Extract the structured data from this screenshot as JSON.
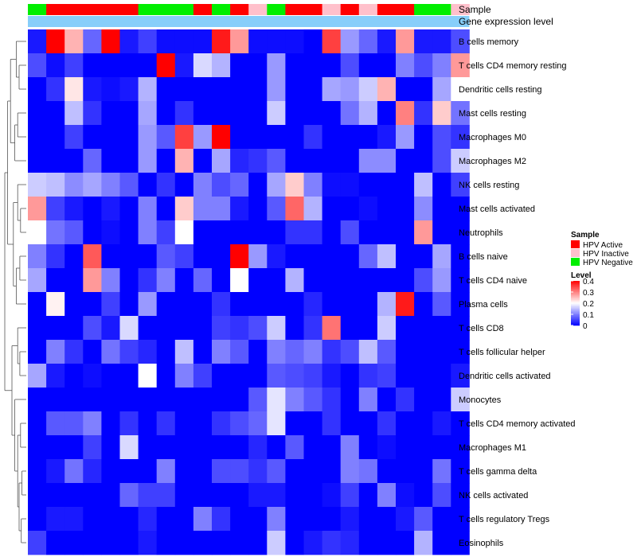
{
  "chart_data": {
    "type": "heatmap",
    "annotation_tracks": [
      "Sample",
      "Gene expression level"
    ],
    "sample_annotation": [
      "HPV Negative",
      "HPV Active",
      "HPV Active",
      "HPV Active",
      "HPV Active",
      "HPV Active",
      "HPV Negative",
      "HPV Negative",
      "HPV Negative",
      "HPV Active",
      "HPV Negative",
      "HPV Active",
      "HPV Inactive",
      "HPV Negative",
      "HPV Active",
      "HPV Active",
      "HPV Inactive",
      "HPV Active",
      "HPV Inactive",
      "HPV Active",
      "HPV Active",
      "HPV Negative",
      "HPV Negative",
      "HPV Inactive"
    ],
    "rows": [
      "B cells memory",
      "T cells CD4 memory resting",
      "Dendritic cells resting",
      "Mast cells resting",
      "Macrophages M0",
      "Macrophages M2",
      "NK cells resting",
      "Mast cells activated",
      "Neutrophils",
      "B cells naive",
      "T cells CD4 naive",
      "Plasma cells",
      "T cells CD8",
      "T cells follicular helper",
      "Dendritic cells activated",
      "Monocytes",
      "T cells CD4 memory activated",
      "Macrophages M1",
      "T cells gamma delta",
      "NK cells activated",
      "T cells regulatory  Tregs",
      "Eosinophils"
    ],
    "values": [
      [
        0.02,
        0.4,
        0.26,
        0.08,
        0.4,
        0.02,
        0.05,
        0.01,
        0.01,
        0.01,
        0.38,
        0.28,
        0.01,
        0.01,
        0.01,
        0.0,
        0.35,
        0.12,
        0.08,
        0.02,
        0.28,
        0.02,
        0.02,
        0.06
      ],
      [
        0.06,
        0.01,
        0.05,
        0.0,
        0.0,
        0.0,
        0.0,
        0.4,
        0.02,
        0.17,
        0.14,
        0.0,
        0.0,
        0.12,
        0.0,
        0.0,
        0.0,
        0.06,
        0.0,
        0.0,
        0.1,
        0.06,
        0.1,
        0.28
      ],
      [
        0.0,
        0.04,
        0.22,
        0.02,
        0.01,
        0.02,
        0.14,
        0.0,
        0.0,
        0.0,
        0.0,
        0.0,
        0.0,
        0.12,
        0.0,
        0.0,
        0.13,
        0.12,
        0.16,
        0.26,
        0.0,
        0.0,
        0.13,
        0.2
      ],
      [
        0.0,
        0.0,
        0.15,
        0.04,
        0.0,
        0.0,
        0.13,
        0.0,
        0.04,
        0.0,
        0.0,
        0.0,
        0.0,
        0.16,
        0.0,
        0.0,
        0.0,
        0.09,
        0.14,
        0.0,
        0.3,
        0.04,
        0.24,
        0.09
      ],
      [
        0.0,
        0.0,
        0.05,
        0.0,
        0.0,
        0.0,
        0.12,
        0.07,
        0.35,
        0.12,
        0.4,
        0.0,
        0.0,
        0.0,
        0.0,
        0.04,
        0.0,
        0.0,
        0.0,
        0.02,
        0.12,
        0.0,
        0.06,
        0.04
      ],
      [
        0.0,
        0.0,
        0.0,
        0.08,
        0.0,
        0.0,
        0.12,
        0.0,
        0.26,
        0.0,
        0.13,
        0.03,
        0.04,
        0.07,
        0.0,
        0.0,
        0.0,
        0.0,
        0.11,
        0.11,
        0.0,
        0.0,
        0.06,
        0.16
      ],
      [
        0.16,
        0.15,
        0.11,
        0.13,
        0.1,
        0.07,
        0.0,
        0.04,
        0.0,
        0.1,
        0.06,
        0.08,
        0.0,
        0.13,
        0.24,
        0.1,
        0.01,
        0.01,
        0.0,
        0.0,
        0.0,
        0.15,
        0.0,
        0.05
      ],
      [
        0.28,
        0.05,
        0.02,
        0.0,
        0.02,
        0.0,
        0.1,
        0.0,
        0.24,
        0.1,
        0.1,
        0.02,
        0.0,
        0.07,
        0.32,
        0.14,
        0.0,
        0.0,
        0.01,
        0.0,
        0.0,
        0.11,
        0.0,
        0.0
      ],
      [
        0.2,
        0.09,
        0.07,
        0.0,
        0.01,
        0.0,
        0.1,
        0.05,
        0.2,
        0.0,
        0.0,
        0.0,
        0.0,
        0.0,
        0.04,
        0.04,
        0.0,
        0.06,
        0.0,
        0.0,
        0.0,
        0.28,
        0.0,
        0.0
      ],
      [
        0.1,
        0.04,
        0.0,
        0.33,
        0.0,
        0.0,
        0.0,
        0.07,
        0.05,
        0.0,
        0.0,
        0.4,
        0.12,
        0.02,
        0.0,
        0.0,
        0.0,
        0.0,
        0.08,
        0.15,
        0.0,
        0.0,
        0.13,
        0.0
      ],
      [
        0.13,
        0.0,
        0.0,
        0.28,
        0.1,
        0.0,
        0.04,
        0.1,
        0.0,
        0.08,
        0.0,
        0.2,
        0.0,
        0.0,
        0.14,
        0.0,
        0.0,
        0.0,
        0.0,
        0.0,
        0.0,
        0.06,
        0.12,
        0.0
      ],
      [
        0.0,
        0.21,
        0.0,
        0.0,
        0.05,
        0.0,
        0.12,
        0.0,
        0.0,
        0.0,
        0.04,
        0.0,
        0.0,
        0.0,
        0.0,
        0.03,
        0.0,
        0.0,
        0.0,
        0.14,
        0.38,
        0.0,
        0.07,
        0.0
      ],
      [
        0.0,
        0.0,
        0.0,
        0.06,
        0.02,
        0.17,
        0.0,
        0.0,
        0.0,
        0.0,
        0.05,
        0.04,
        0.06,
        0.16,
        0.0,
        0.04,
        0.31,
        0.0,
        0.0,
        0.16,
        0.0,
        0.0,
        0.0,
        0.0
      ],
      [
        0.0,
        0.1,
        0.04,
        0.0,
        0.09,
        0.05,
        0.03,
        0.0,
        0.15,
        0.0,
        0.1,
        0.07,
        0.0,
        0.1,
        0.08,
        0.1,
        0.04,
        0.06,
        0.15,
        0.07,
        0.0,
        0.0,
        0.0,
        0.0
      ],
      [
        0.13,
        0.02,
        0.0,
        0.01,
        0.0,
        0.0,
        0.2,
        0.0,
        0.1,
        0.05,
        0.0,
        0.0,
        0.0,
        0.07,
        0.06,
        0.05,
        0.02,
        0.0,
        0.04,
        0.05,
        0.0,
        0.0,
        0.0,
        0.02
      ],
      [
        0.0,
        0.0,
        0.0,
        0.0,
        0.0,
        0.0,
        0.0,
        0.0,
        0.0,
        0.0,
        0.0,
        0.0,
        0.07,
        0.18,
        0.1,
        0.07,
        0.04,
        0.0,
        0.1,
        0.0,
        0.04,
        0.0,
        0.0,
        0.16
      ],
      [
        0.0,
        0.07,
        0.07,
        0.1,
        0.0,
        0.04,
        0.0,
        0.04,
        0.0,
        0.0,
        0.04,
        0.06,
        0.08,
        0.18,
        0.0,
        0.0,
        0.04,
        0.0,
        0.0,
        0.04,
        0.0,
        0.0,
        0.02,
        0.0
      ],
      [
        0.0,
        0.0,
        0.0,
        0.05,
        0.0,
        0.17,
        0.0,
        0.0,
        0.0,
        0.0,
        0.0,
        0.0,
        0.03,
        0.0,
        0.07,
        0.0,
        0.0,
        0.1,
        0.0,
        0.01,
        0.0,
        0.0,
        0.0,
        0.0
      ],
      [
        0.0,
        0.02,
        0.09,
        0.03,
        0.0,
        0.0,
        0.0,
        0.1,
        0.0,
        0.0,
        0.06,
        0.06,
        0.04,
        0.07,
        0.0,
        0.0,
        0.0,
        0.1,
        0.09,
        0.0,
        0.0,
        0.0,
        0.09,
        0.0
      ],
      [
        0.0,
        0.0,
        0.0,
        0.0,
        0.0,
        0.08,
        0.05,
        0.05,
        0.0,
        0.0,
        0.0,
        0.0,
        0.02,
        0.02,
        0.0,
        0.0,
        0.01,
        0.05,
        0.0,
        0.1,
        0.01,
        0.0,
        0.06,
        0.0
      ],
      [
        0.0,
        0.02,
        0.02,
        0.0,
        0.0,
        0.0,
        0.03,
        0.0,
        0.0,
        0.1,
        0.04,
        0.0,
        0.0,
        0.1,
        0.0,
        0.0,
        0.0,
        0.02,
        0.0,
        0.0,
        0.02,
        0.07,
        0.0,
        0.0
      ],
      [
        0.05,
        0.0,
        0.0,
        0.0,
        0.0,
        0.0,
        0.02,
        0.0,
        0.0,
        0.0,
        0.0,
        0.0,
        0.0,
        0.16,
        0.0,
        0.02,
        0.04,
        0.03,
        0.0,
        0.0,
        0.0,
        0.14,
        0.0,
        0.0
      ]
    ],
    "color_scale": {
      "min": 0,
      "max": 0.4,
      "low": "#0000ff",
      "mid": "#ffffff",
      "high": "#ff0000"
    },
    "legend": {
      "sample_title": "Sample",
      "sample_entries": [
        {
          "label": "HPV Active",
          "color": "#ff0000"
        },
        {
          "label": "HPV Inactive",
          "color": "#ffc0cb"
        },
        {
          "label": "HPV Negative",
          "color": "#00ee00"
        }
      ],
      "level_title": "Level",
      "level_ticks": [
        0.4,
        0.3,
        0.2,
        0.1,
        0
      ],
      "level_tick_labels": [
        "0.4",
        "0.3",
        "0.2",
        "0.1",
        "0"
      ],
      "placement": "right"
    },
    "gene_expression_color": "#87cefa",
    "row_dendrogram": true
  }
}
